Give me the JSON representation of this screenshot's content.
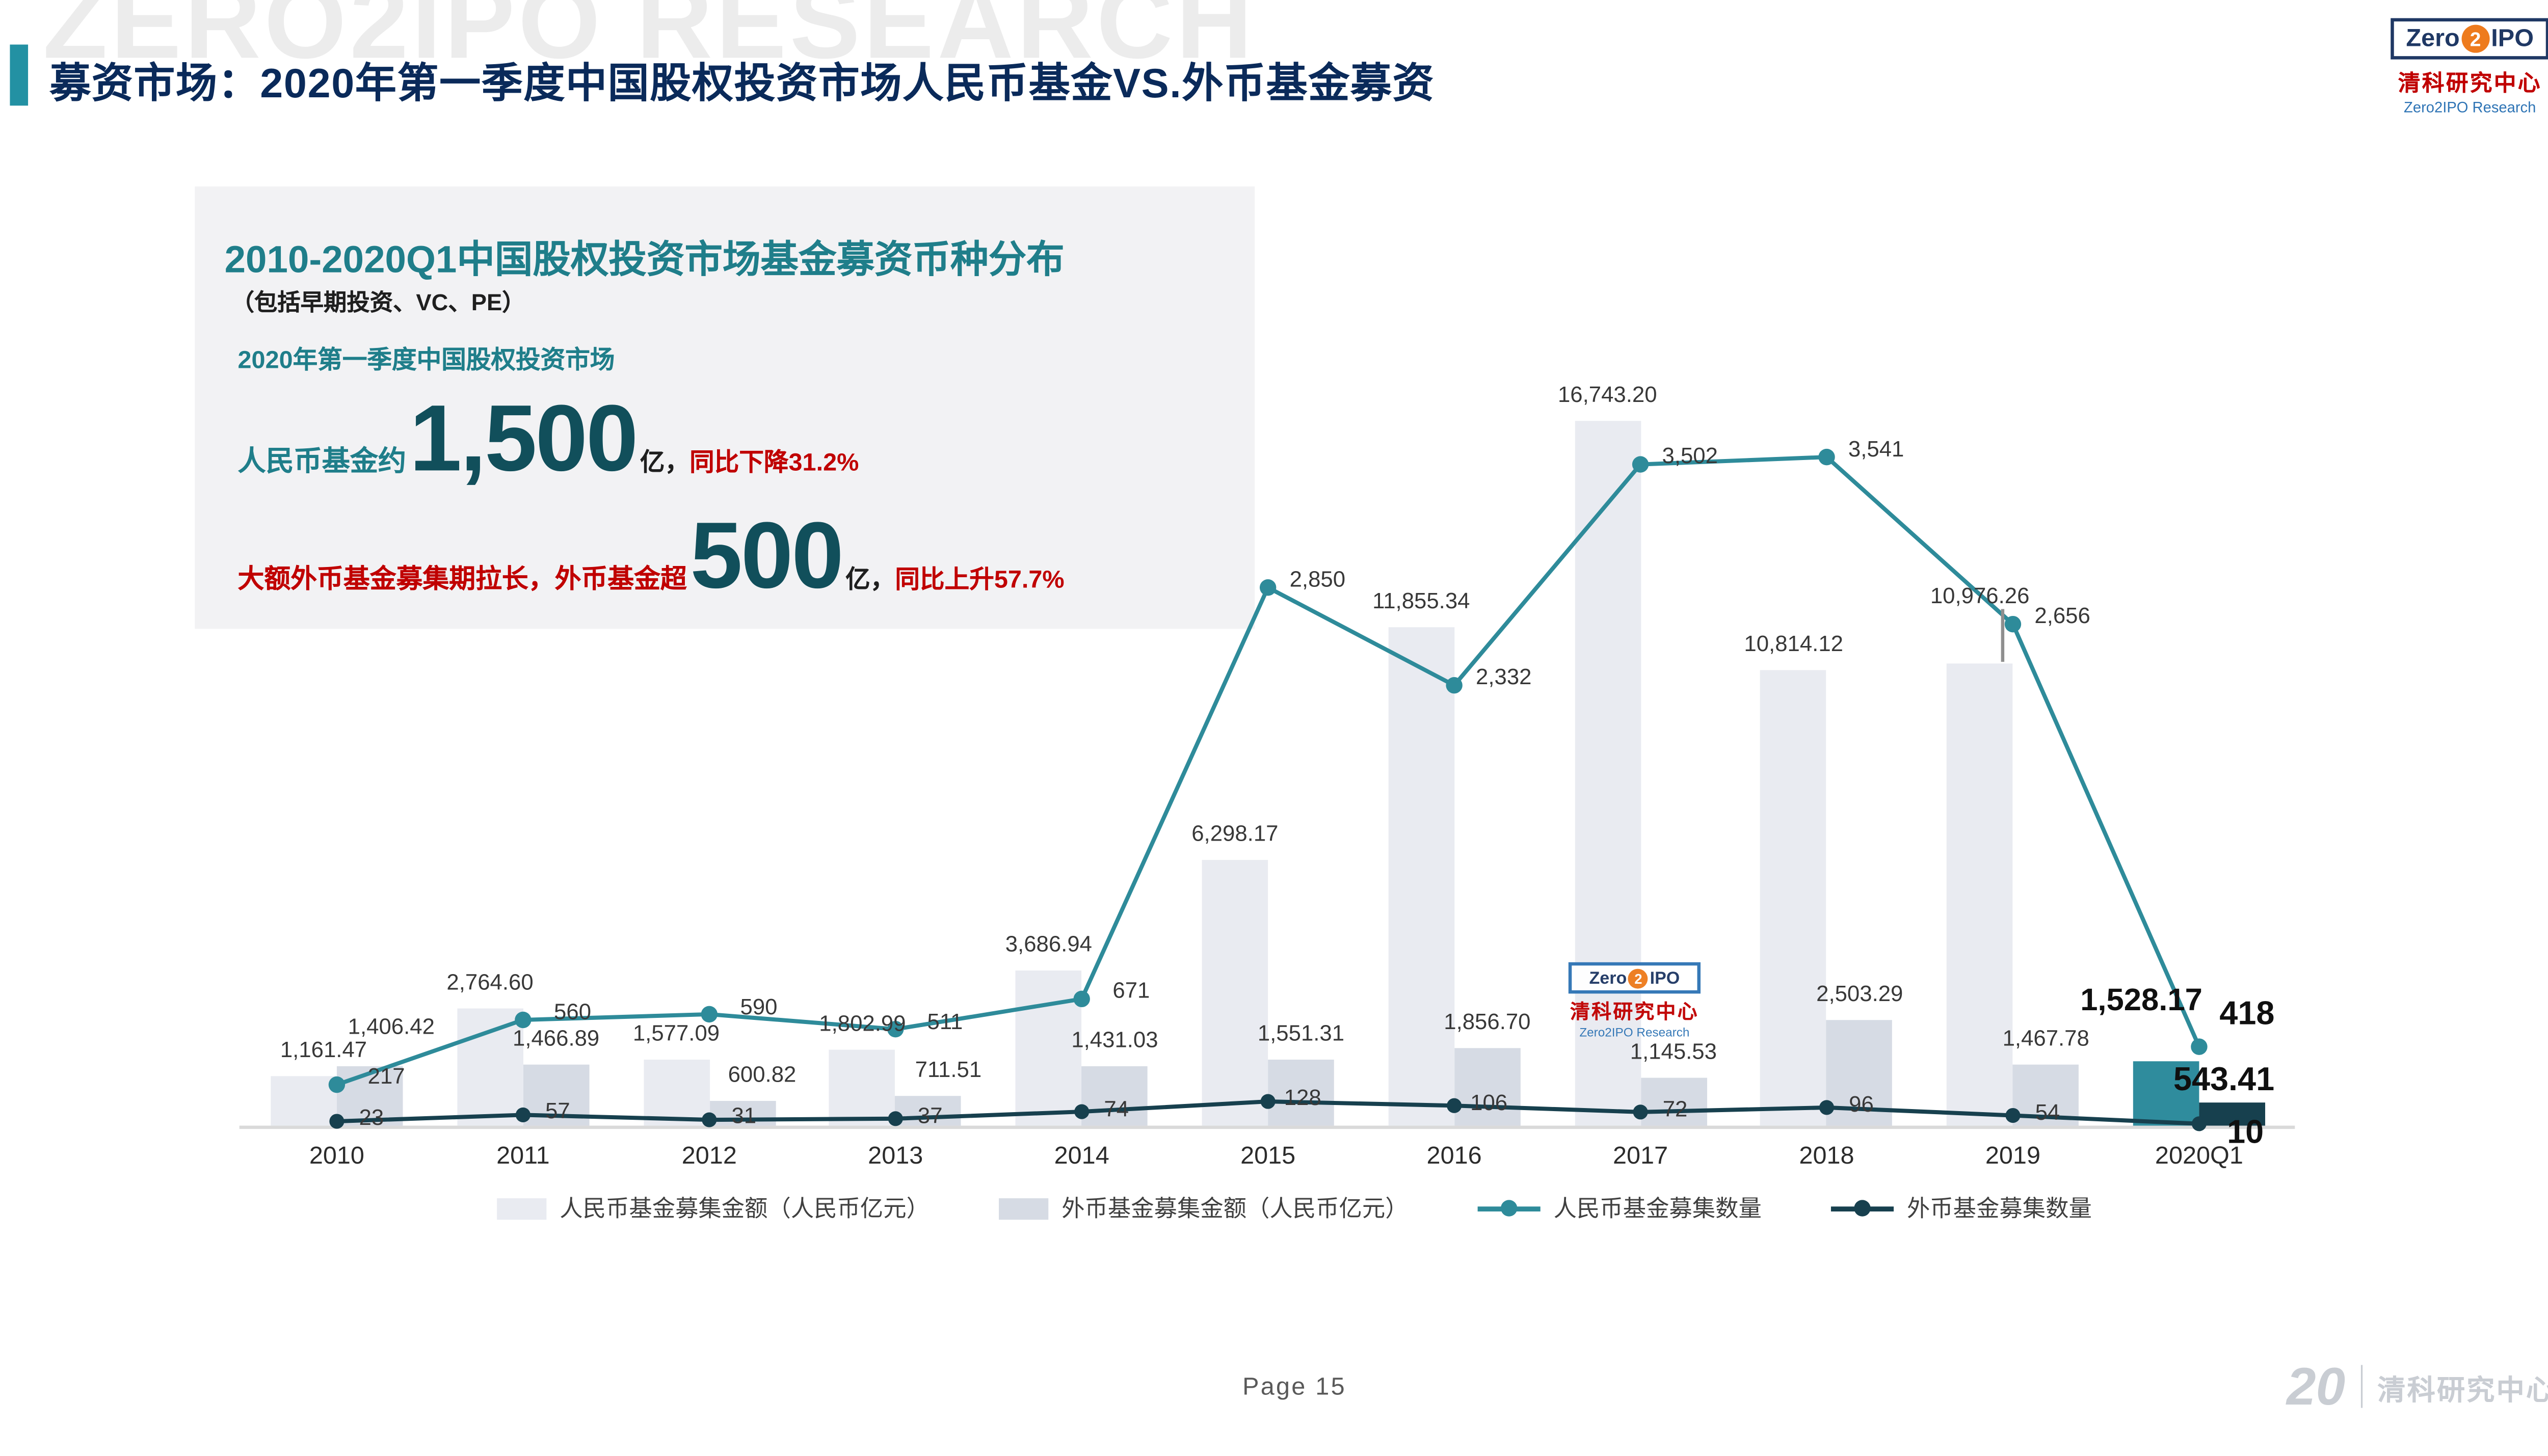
{
  "header": {
    "title": "募资市场：2020年第一季度中国股权投资市场人民币基金VS.外币基金募资",
    "watermark": "ZERO2IPO RESEARCH"
  },
  "logo": {
    "zero": "Zero",
    "two": "2",
    "ipo": "IPO",
    "cn": "清科研究中心",
    "en": "Zero2IPO Research"
  },
  "info_box": {
    "title": "2010-2020Q1中国股权投资市场基金募资币种分布",
    "subtitle": "（包括早期投资、VC、PE）",
    "context_line": "2020年第一季度中国股权投资市场",
    "rmb_prefix": "人民币基金约",
    "rmb_big": "1,500",
    "rmb_unit": "亿，",
    "rmb_change": "同比下降31.2%",
    "fx_prefix": "大额外币基金募集期拉长，外币基金超",
    "fx_big": "500",
    "fx_unit": "亿，",
    "fx_change": "同比上升57.7%"
  },
  "chart_data": {
    "type": "bar+line combo",
    "categories": [
      "2010",
      "2011",
      "2012",
      "2013",
      "2014",
      "2015",
      "2016",
      "2017",
      "2018",
      "2019",
      "2020Q1"
    ],
    "series": [
      {
        "name": "人民币基金募集金额（人民币亿元）",
        "type": "bar",
        "axis": "left",
        "values": [
          1161.47,
          2764.6,
          1577.09,
          1802.99,
          3686.94,
          6298.17,
          11855.34,
          16743.2,
          10814.12,
          10976.26,
          1528.17
        ],
        "labels": [
          "1,161.47",
          "2,764.60",
          "1,577.09",
          "1,802.99",
          "3,686.94",
          "6,298.17",
          "11,855.34",
          "16,743.20",
          "10,814.12",
          "10,976.26",
          "1,528.17"
        ]
      },
      {
        "name": "外币基金募集金额（人民币亿元）",
        "type": "bar",
        "axis": "left",
        "values": [
          1406.42,
          1466.89,
          600.82,
          711.51,
          1431.03,
          1551.31,
          1856.7,
          1145.53,
          2503.29,
          1467.78,
          543.41
        ],
        "labels": [
          "1,406.42",
          "1,466.89",
          "600.82",
          "711.51",
          "1,431.03",
          "1,551.31",
          "1,856.70",
          "1,145.53",
          "2,503.29",
          "1,467.78",
          "543.41"
        ]
      },
      {
        "name": "人民币基金募集数量",
        "type": "line",
        "axis": "right",
        "values": [
          217,
          560,
          590,
          511,
          671,
          2850,
          2332,
          3502,
          3541,
          2656,
          418
        ],
        "labels": [
          "217",
          "560",
          "590",
          "511",
          "671",
          "2,850",
          "2,332",
          "3,502",
          "3,541",
          "2,656",
          "418"
        ]
      },
      {
        "name": "外币基金募集数量",
        "type": "line",
        "axis": "right",
        "values": [
          23,
          57,
          31,
          37,
          74,
          128,
          106,
          72,
          96,
          54,
          10
        ],
        "labels": [
          "23",
          "57",
          "31",
          "37",
          "74",
          "128",
          "106",
          "72",
          "96",
          "54",
          "10"
        ]
      }
    ],
    "highlight_category": "2020Q1",
    "highlight_labels": [
      "1,528.17",
      "543.41",
      "418",
      "10"
    ],
    "value_axes_visible": false,
    "grid": false,
    "legend_position": "bottom",
    "left_axis_range_implied": [
      0,
      17000
    ],
    "right_axis_range_implied": [
      0,
      3600
    ]
  },
  "colors": {
    "accent_teal": "#2391A3",
    "title_navy": "#0A2A5A",
    "box_title_teal": "#1F7E8A",
    "big_number_teal": "#114F5B",
    "red": "#C00000",
    "bar_rmb": "#E9EBF1",
    "bar_fx": "#D6DBE4",
    "bar_rmb_highlight": "#2F8C9D",
    "bar_fx_highlight": "#17404E",
    "line_rmb": "#2E8B9A",
    "line_fx": "#17404E",
    "logo_orange": "#EE7B1D",
    "logo_blue": "#1F3864"
  },
  "footer": {
    "page": "Page 15",
    "anniversary": "20",
    "brand": "清科研究中心"
  }
}
